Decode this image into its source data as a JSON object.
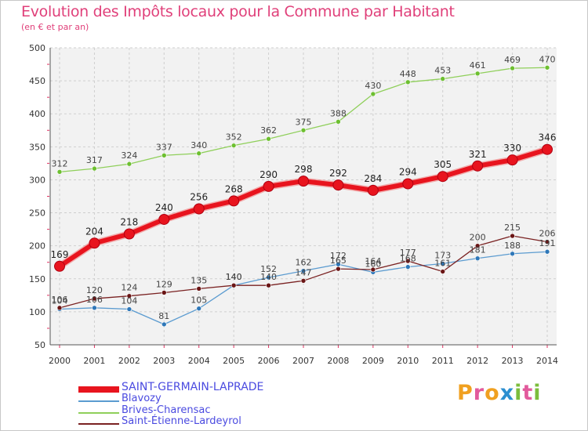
{
  "title": "Evolution des Impôts locaux pour la Commune par Habitant",
  "subtitle": "(en € et par an)",
  "brand": {
    "letters": [
      {
        "ch": "P",
        "color": "#f0a020"
      },
      {
        "ch": "r",
        "color": "#e25a9c"
      },
      {
        "ch": "o",
        "color": "#f0a020"
      },
      {
        "ch": "x",
        "color": "#2c8fd0"
      },
      {
        "ch": "i",
        "color": "#7cbd3c"
      },
      {
        "ch": "t",
        "color": "#e25a9c"
      },
      {
        "ch": "i",
        "color": "#7cbd3c"
      }
    ]
  },
  "chart_data": {
    "type": "line",
    "title": "Evolution des Impôts locaux pour la Commune par Habitant",
    "subtitle": "(en € et par an)",
    "x": [
      2000,
      2001,
      2002,
      2003,
      2004,
      2005,
      2006,
      2007,
      2008,
      2009,
      2010,
      2011,
      2012,
      2013,
      2014
    ],
    "ylim": [
      50,
      500
    ],
    "yticks": [
      50,
      100,
      150,
      200,
      250,
      300,
      350,
      400,
      450,
      500
    ],
    "grid": true,
    "series": [
      {
        "name": "SAINT-GERMAIN-LAPRADE",
        "color": "#e8141e",
        "marker": "#e8141e",
        "label_color": "#222222",
        "values": [
          169,
          204,
          218,
          240,
          256,
          268,
          290,
          298,
          292,
          284,
          294,
          305,
          321,
          330,
          346
        ],
        "labels": [
          "169",
          "204",
          "218",
          "240",
          "256",
          "268",
          "290",
          "298",
          "292",
          "284",
          "294",
          "305",
          "321",
          "330",
          "346"
        ]
      },
      {
        "name": "Blavozy",
        "color": "#5b9bd0",
        "marker": "#2e77b8",
        "label_color": "#444444",
        "values": [
          104,
          106,
          104,
          81,
          105,
          140,
          152,
          162,
          172,
          160,
          168,
          173,
          181,
          188,
          191
        ],
        "labels": [
          "104",
          "106",
          "104",
          "81",
          "105",
          "140",
          "152",
          "162",
          "172",
          "160",
          "168",
          "173",
          "181",
          "188",
          "191"
        ]
      },
      {
        "name": "Brives-Charensac",
        "color": "#8fcf5a",
        "marker": "#6dbf30",
        "label_color": "#444444",
        "values": [
          312,
          317,
          324,
          337,
          340,
          352,
          362,
          375,
          388,
          430,
          448,
          453,
          461,
          469,
          470
        ],
        "labels": [
          "312",
          "317",
          "324",
          "337",
          "340",
          "352",
          "362",
          "375",
          "388",
          "430",
          "448",
          "453",
          "461",
          "469",
          "470"
        ]
      },
      {
        "name": "Saint-Étienne-Lardeyrol",
        "color": "#7a2222",
        "marker": "#6a1515",
        "label_color": "#444444",
        "values": [
          106,
          120,
          124,
          129,
          135,
          140,
          140,
          147,
          165,
          164,
          177,
          161,
          200,
          215,
          206
        ],
        "labels": [
          "106",
          "120",
          "124",
          "129",
          "135",
          "140",
          "140",
          "147",
          "165",
          "164",
          "177",
          "161",
          "200",
          "215",
          "206"
        ]
      }
    ]
  }
}
